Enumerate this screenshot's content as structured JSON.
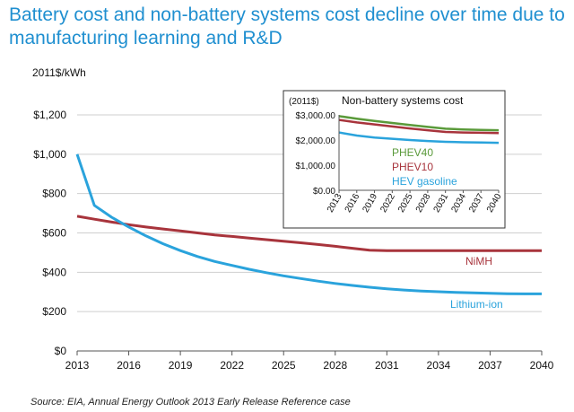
{
  "title": "Battery cost and non-battery systems cost decline over time due to manufacturing learning and R&D",
  "source": "Source: EIA, Annual Energy Outlook 2013 Early Release Reference case",
  "colors": {
    "title": "#1f8fd0",
    "nimh": "#a8343c",
    "lithium": "#2aa3dc",
    "phev40": "#5a9a3a",
    "phev10": "#a8343c",
    "hev": "#2aa3dc",
    "grid": "#cccccc"
  },
  "chart_data": [
    {
      "type": "line",
      "ylabel": "2011$/kWh",
      "xlim": [
        2013,
        2040
      ],
      "ylim": [
        0,
        1200
      ],
      "xticks": [
        "2013",
        "2016",
        "2019",
        "2022",
        "2025",
        "2028",
        "2031",
        "2034",
        "2037",
        "2040"
      ],
      "yticks": [
        "$0",
        "$200",
        "$400",
        "$600",
        "$800",
        "$1,000",
        "$1,200"
      ],
      "series": [
        {
          "name": "NiMH",
          "color": "#a8343c",
          "x": [
            2013,
            2014,
            2015,
            2016,
            2017,
            2018,
            2019,
            2020,
            2021,
            2022,
            2023,
            2024,
            2025,
            2026,
            2027,
            2028,
            2029,
            2030,
            2031,
            2032,
            2033,
            2034,
            2035,
            2036,
            2037,
            2038,
            2039,
            2040
          ],
          "values": [
            685,
            670,
            655,
            642,
            630,
            620,
            610,
            600,
            590,
            582,
            574,
            566,
            558,
            550,
            541,
            532,
            522,
            512,
            510,
            510,
            510,
            510,
            510,
            510,
            510,
            510,
            510,
            510
          ]
        },
        {
          "name": "Lithium-ion",
          "color": "#2aa3dc",
          "x": [
            2013,
            2014,
            2015,
            2016,
            2017,
            2018,
            2019,
            2020,
            2021,
            2022,
            2023,
            2024,
            2025,
            2026,
            2027,
            2028,
            2029,
            2030,
            2031,
            2032,
            2033,
            2034,
            2035,
            2036,
            2037,
            2038,
            2039,
            2040
          ],
          "values": [
            1000,
            740,
            680,
            630,
            585,
            545,
            510,
            480,
            455,
            435,
            415,
            398,
            382,
            368,
            355,
            343,
            333,
            324,
            316,
            310,
            305,
            301,
            298,
            295,
            293,
            291,
            290,
            290
          ]
        }
      ]
    },
    {
      "type": "line",
      "title": "Non-battery systems cost",
      "ylabel": "(2011$)",
      "xlim": [
        2013,
        2040
      ],
      "ylim": [
        0,
        3000
      ],
      "xticks": [
        "2013",
        "2016",
        "2019",
        "2022",
        "2025",
        "2028",
        "2031",
        "2034",
        "2037",
        "2040"
      ],
      "yticks": [
        "$0.00",
        "$1,000.00",
        "$2,000.00",
        "$3,000.00"
      ],
      "series": [
        {
          "name": "PHEV40",
          "color": "#5a9a3a",
          "x": [
            2013,
            2016,
            2019,
            2022,
            2025,
            2028,
            2031,
            2034,
            2037,
            2040
          ],
          "values": [
            2950,
            2850,
            2760,
            2680,
            2600,
            2520,
            2450,
            2420,
            2400,
            2390
          ]
        },
        {
          "name": "PHEV10",
          "color": "#a8343c",
          "x": [
            2013,
            2016,
            2019,
            2022,
            2025,
            2028,
            2031,
            2034,
            2037,
            2040
          ],
          "values": [
            2800,
            2700,
            2620,
            2540,
            2460,
            2390,
            2320,
            2300,
            2290,
            2280
          ]
        },
        {
          "name": "HEV gasoline",
          "color": "#2aa3dc",
          "x": [
            2013,
            2016,
            2019,
            2022,
            2025,
            2028,
            2031,
            2034,
            2037,
            2040
          ],
          "values": [
            2300,
            2180,
            2100,
            2050,
            2000,
            1960,
            1930,
            1910,
            1900,
            1890
          ]
        }
      ]
    }
  ]
}
